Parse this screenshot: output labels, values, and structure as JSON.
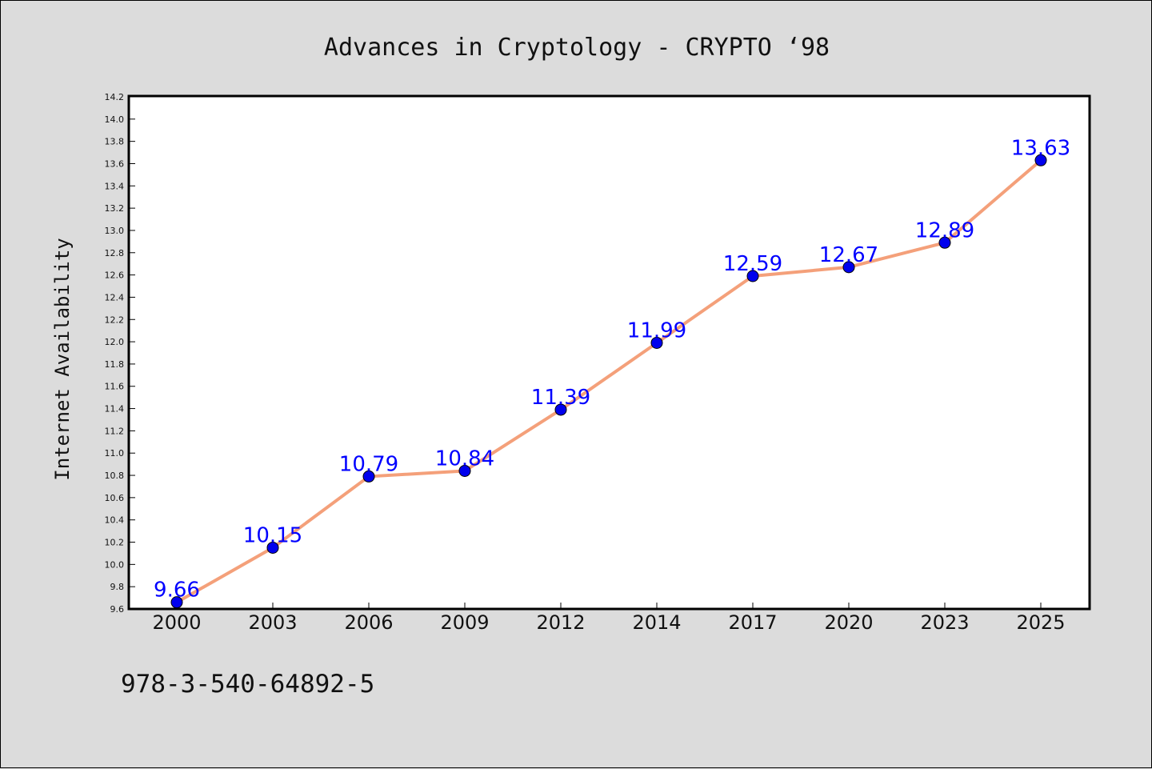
{
  "chart_data": {
    "type": "line",
    "title": "Advances in Cryptology - CRYPTO  ‘98",
    "ylabel": "Internet Availability",
    "xlabel": "",
    "categories": [
      "2000",
      "2003",
      "2006",
      "2009",
      "2012",
      "2014",
      "2017",
      "2020",
      "2023",
      "2025"
    ],
    "series": [
      {
        "values": [
          9.66,
          10.15,
          10.79,
          10.84,
          11.39,
          11.99,
          12.59,
          12.67,
          12.89,
          13.63
        ],
        "line_color": "#f4a07a",
        "marker_color": "#0000ee",
        "label_color": "#0000ff"
      }
    ],
    "ylim": [
      9.6,
      14.2
    ],
    "ytick_step": 0.2,
    "grid": false,
    "legend": "none"
  },
  "footer": {
    "isbn": "978-3-540-64892-5"
  }
}
